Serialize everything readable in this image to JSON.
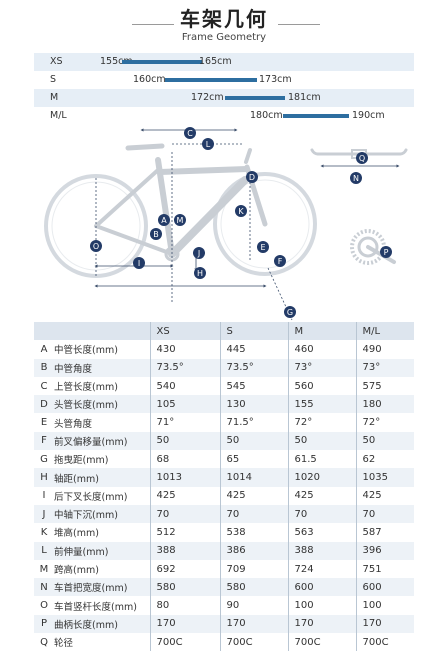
{
  "header": {
    "title_cn": "车架几何",
    "title_en": "Frame Geometry"
  },
  "sizes": [
    {
      "size": "XS",
      "min": "155cm",
      "max": "165cm"
    },
    {
      "size": "S",
      "min": "160cm",
      "max": "173cm"
    },
    {
      "size": "M",
      "min": "172cm",
      "max": "181cm"
    },
    {
      "size": "M/L",
      "min": "180cm",
      "max": "190cm"
    }
  ],
  "diagram_labels": [
    "A",
    "B",
    "C",
    "D",
    "E",
    "F",
    "G",
    "H",
    "I",
    "J",
    "K",
    "L",
    "M",
    "N",
    "O",
    "P",
    "Q"
  ],
  "table": {
    "headers": [
      "XS",
      "S",
      "M",
      "M/L"
    ],
    "rows": [
      {
        "key": "A",
        "name": "中管长度(mm)",
        "values": [
          "430",
          "445",
          "460",
          "490"
        ]
      },
      {
        "key": "B",
        "name": "中管角度",
        "values": [
          "73.5°",
          "73.5°",
          "73°",
          "73°"
        ]
      },
      {
        "key": "C",
        "name": "上管长度(mm)",
        "values": [
          "540",
          "545",
          "560",
          "575"
        ]
      },
      {
        "key": "D",
        "name": "头管长度(mm)",
        "values": [
          "105",
          "130",
          "155",
          "180"
        ]
      },
      {
        "key": "E",
        "name": "头管角度",
        "values": [
          "71°",
          "71.5°",
          "72°",
          "72°"
        ]
      },
      {
        "key": "F",
        "name": "前叉偏移量(mm)",
        "values": [
          "50",
          "50",
          "50",
          "50"
        ]
      },
      {
        "key": "G",
        "name": "拖曳距(mm)",
        "values": [
          "68",
          "65",
          "61.5",
          "62"
        ]
      },
      {
        "key": "H",
        "name": "轴距(mm)",
        "values": [
          "1013",
          "1014",
          "1020",
          "1035"
        ]
      },
      {
        "key": "I",
        "name": "后下叉长度(mm)",
        "values": [
          "425",
          "425",
          "425",
          "425"
        ]
      },
      {
        "key": "J",
        "name": "中轴下沉(mm)",
        "values": [
          "70",
          "70",
          "70",
          "70"
        ]
      },
      {
        "key": "K",
        "name": "堆高(mm)",
        "values": [
          "512",
          "538",
          "563",
          "587"
        ]
      },
      {
        "key": "L",
        "name": "前伸量(mm)",
        "values": [
          "388",
          "386",
          "388",
          "396"
        ]
      },
      {
        "key": "M",
        "name": "跨高(mm)",
        "values": [
          "692",
          "709",
          "724",
          "751"
        ]
      },
      {
        "key": "N",
        "name": "车首把宽度(mm)",
        "values": [
          "580",
          "580",
          "600",
          "600"
        ]
      },
      {
        "key": "O",
        "name": "车首竖杆长度(mm)",
        "values": [
          "80",
          "90",
          "100",
          "100"
        ]
      },
      {
        "key": "P",
        "name": "曲柄长度(mm)",
        "values": [
          "170",
          "170",
          "170",
          "170"
        ]
      },
      {
        "key": "Q",
        "name": "轮径",
        "values": [
          "700C",
          "700C",
          "700C",
          "700C"
        ]
      }
    ]
  }
}
